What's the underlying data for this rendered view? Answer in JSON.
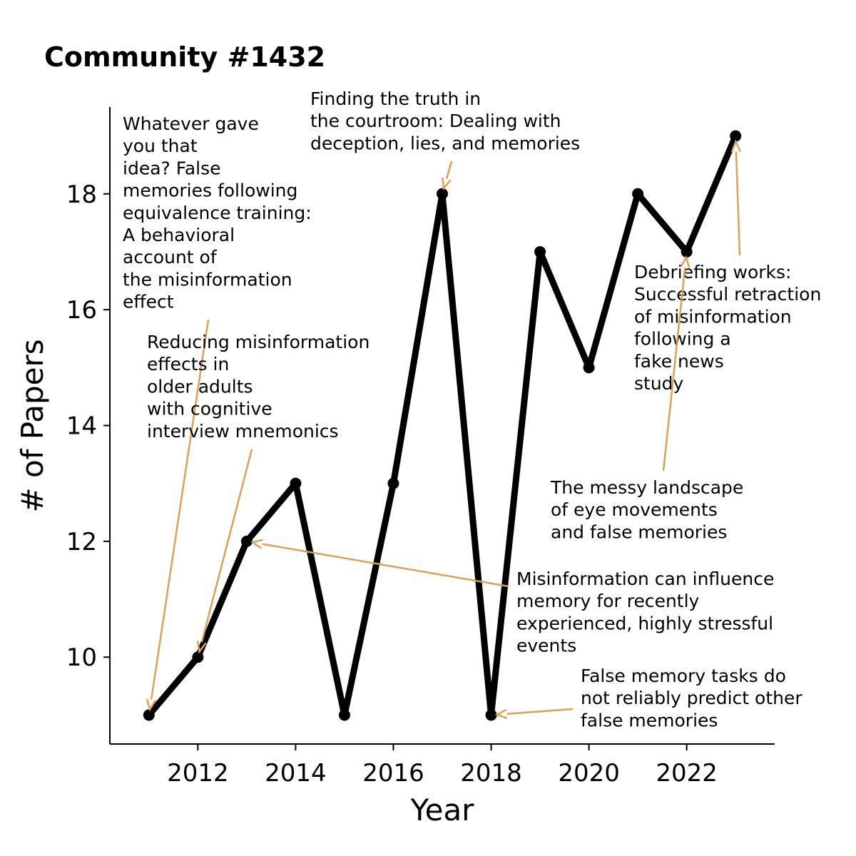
{
  "chart_data": {
    "type": "line",
    "title": "Community #1432",
    "xlabel": "Year",
    "ylabel": "# of Papers",
    "x": [
      2011,
      2012,
      2013,
      2014,
      2015,
      2016,
      2017,
      2018,
      2019,
      2020,
      2021,
      2022,
      2023
    ],
    "series": [
      {
        "values": [
          9,
          10,
          12,
          13,
          9,
          13,
          18,
          9,
          17,
          15,
          18,
          17,
          19
        ]
      }
    ],
    "xlim": [
      2010.2,
      2023.8
    ],
    "ylim": [
      8.5,
      19.5
    ],
    "xticks": [
      2012,
      2014,
      2016,
      2018,
      2020,
      2022
    ],
    "yticks": [
      10,
      12,
      14,
      16,
      18
    ],
    "grid": false,
    "line_color": "#000000",
    "annotation_color": "#E0A050",
    "annotations": [
      {
        "text": [
          "Whatever gave",
          "you that",
          "idea? False",
          "memories following",
          "equivalence training:",
          "A behavioral",
          "account of",
          "the misinformation",
          "effect"
        ],
        "target": [
          2011,
          9
        ]
      },
      {
        "text": [
          "Reducing misinformation",
          "effects in",
          "older adults",
          "with cognitive",
          "interview mnemonics"
        ],
        "target": [
          2012,
          10
        ]
      },
      {
        "text": [
          "Finding the truth in",
          "the courtroom: Dealing with",
          "deception, lies, and memories"
        ],
        "target": [
          2017,
          18
        ]
      },
      {
        "text": [
          "Debriefing works:",
          "Successful retraction",
          "of misinformation",
          "following a",
          "fake news",
          "study"
        ],
        "target": [
          2023,
          19
        ]
      },
      {
        "text": [
          "The messy landscape",
          "of eye movements",
          "and false memories"
        ],
        "target": [
          2022,
          17
        ]
      },
      {
        "text": [
          "Misinformation can influence",
          "memory for recently",
          "experienced, highly stressful",
          "events"
        ],
        "target": [
          2013,
          12
        ]
      },
      {
        "text": [
          "False memory tasks do",
          "not reliably predict other",
          "false memories"
        ],
        "target": [
          2018,
          9
        ]
      }
    ]
  }
}
